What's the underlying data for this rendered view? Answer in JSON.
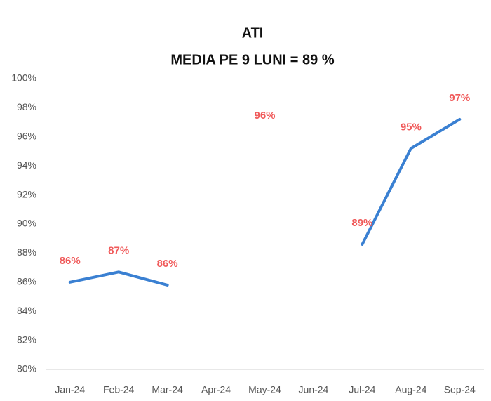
{
  "chart_data": {
    "type": "line",
    "title": "ATI",
    "subtitle": "MEDIA PE 9 LUNI = 89 %",
    "categories": [
      "Jan-24",
      "Feb-24",
      "Mar-24",
      "Apr-24",
      "May-24",
      "Jun-24",
      "Jul-24",
      "Aug-24",
      "Sep-24"
    ],
    "values": [
      86.0,
      86.7,
      85.8,
      null,
      96,
      null,
      88.6,
      95.2,
      97.2
    ],
    "value_labels": [
      "86%",
      "87%",
      "86%",
      null,
      "96%",
      null,
      "89%",
      "95%",
      "97%"
    ],
    "color": "#3a80d2",
    "label_color": "#f05a5a",
    "ylim": [
      80,
      100
    ],
    "yticks": [
      {
        "value": 80,
        "label": "80%"
      },
      {
        "value": 82,
        "label": "82%"
      },
      {
        "value": 84,
        "label": "84%"
      },
      {
        "value": 86,
        "label": "86%"
      },
      {
        "value": 88,
        "label": "88%"
      },
      {
        "value": 90,
        "label": "90%"
      },
      {
        "value": 92,
        "label": "92%"
      },
      {
        "value": 94,
        "label": "94%"
      },
      {
        "value": 96,
        "label": "96%"
      },
      {
        "value": 98,
        "label": "98%"
      },
      {
        "value": 100,
        "label": "100%"
      }
    ],
    "grid": false
  }
}
